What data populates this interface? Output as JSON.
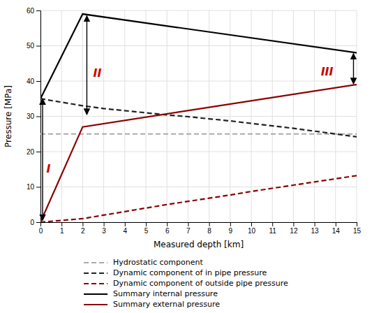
{
  "chart_data": {
    "type": "line",
    "xlabel": "Measured depth [km]",
    "ylabel": "Pressure [MPa]",
    "xlim": [
      0,
      15
    ],
    "ylim": [
      0,
      60
    ],
    "xticks": [
      0,
      1,
      2,
      3,
      4,
      5,
      6,
      7,
      8,
      9,
      10,
      11,
      12,
      13,
      14,
      15
    ],
    "yticks": [
      0,
      10,
      20,
      30,
      40,
      50,
      60
    ],
    "grid": true,
    "legend": "bottom",
    "series": [
      {
        "name": "Hydrostatic component",
        "color": "#aaaaaa",
        "line_style": "dashed",
        "x": [
          0,
          15
        ],
        "values": [
          25.0,
          25.0
        ]
      },
      {
        "name": "Dynamic component of in pipe pressure",
        "color": "#222222",
        "line_style": "dashed",
        "x": [
          0,
          2,
          3,
          4,
          5,
          6,
          7,
          8,
          9,
          10,
          11,
          12,
          13,
          14,
          15
        ],
        "values": [
          35.0,
          33.0,
          32.2,
          31.6,
          31.0,
          30.4,
          29.9,
          29.3,
          28.7,
          28.0,
          27.3,
          26.6,
          25.8,
          25.0,
          24.2
        ]
      },
      {
        "name": "Dynamic component of outside pipe pressure",
        "color": "#8b0000",
        "line_style": "dashed",
        "x": [
          0,
          1,
          2,
          3,
          4,
          5,
          6,
          7,
          8,
          9,
          10,
          11,
          12,
          13,
          14,
          15
        ],
        "values": [
          0.0,
          0.5,
          1.0,
          2.0,
          3.0,
          4.0,
          5.0,
          5.9,
          6.8,
          7.7,
          8.7,
          9.6,
          10.5,
          11.4,
          12.3,
          13.2
        ]
      },
      {
        "name": "Summary internal pressure",
        "color": "#000000",
        "line_style": "solid",
        "x": [
          0,
          2,
          15
        ],
        "values": [
          35.0,
          59.0,
          48.0
        ]
      },
      {
        "name": "Summary external pressure",
        "color": "#8b0000",
        "line_style": "solid",
        "x": [
          0,
          2,
          15
        ],
        "values": [
          0.0,
          27.0,
          39.0
        ]
      }
    ],
    "annotations": [
      {
        "text": "I",
        "x": 0.28,
        "y": 15.0,
        "color": "#cc0000",
        "arrow": {
          "x": 0.1,
          "y_top": 35.0,
          "y_bottom": 0.5
        }
      },
      {
        "text": "II",
        "x": 2.5,
        "y": 42.0,
        "color": "#cc0000",
        "arrow": {
          "x": 2.2,
          "y_top": 58.5,
          "y_bottom": 30.5
        }
      },
      {
        "text": "III",
        "x": 13.3,
        "y": 42.5,
        "color": "#cc0000",
        "arrow": {
          "x": 14.85,
          "y_top": 47.8,
          "y_bottom": 39.2
        }
      }
    ]
  }
}
